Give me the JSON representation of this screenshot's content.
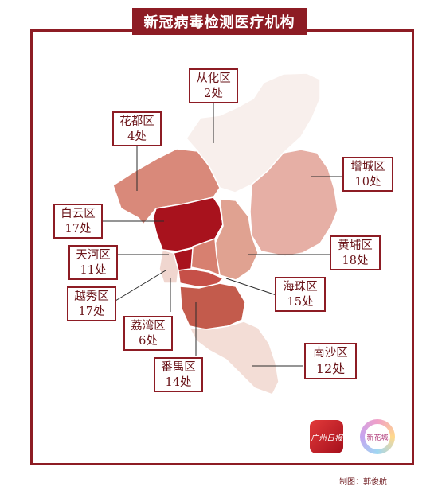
{
  "title": "新冠病毒检测医疗机构",
  "credit": "制图：郭俊航",
  "logos": {
    "guangzhou_daily": "广州日报",
    "xinhuacheng": "新花城"
  },
  "districts": [
    {
      "id": "conghua",
      "name": "从化区",
      "count": "2处",
      "color": "#f8efec"
    },
    {
      "id": "huadu",
      "name": "花都区",
      "count": "4处",
      "color": "#d9897a"
    },
    {
      "id": "zengcheng",
      "name": "增城区",
      "count": "10处",
      "color": "#e6afa5"
    },
    {
      "id": "baiyun",
      "name": "白云区",
      "count": "17处",
      "color": "#a8121d"
    },
    {
      "id": "huangpu",
      "name": "黄埔区",
      "count": "18处",
      "color": "#e0a291"
    },
    {
      "id": "tianhe",
      "name": "天河区",
      "count": "11处",
      "color": "#d78070"
    },
    {
      "id": "haizhu",
      "name": "海珠区",
      "count": "15处",
      "color": "#c65048"
    },
    {
      "id": "yuexiu",
      "name": "越秀区",
      "count": "17处",
      "color": "#a8121d"
    },
    {
      "id": "liwan",
      "name": "荔湾区",
      "count": "6处",
      "color": "#f0d6cf"
    },
    {
      "id": "panyu",
      "name": "番禺区",
      "count": "14处",
      "color": "#c35b4c"
    },
    {
      "id": "nansha",
      "name": "南沙区",
      "count": "12处",
      "color": "#f3ddd6"
    }
  ]
}
